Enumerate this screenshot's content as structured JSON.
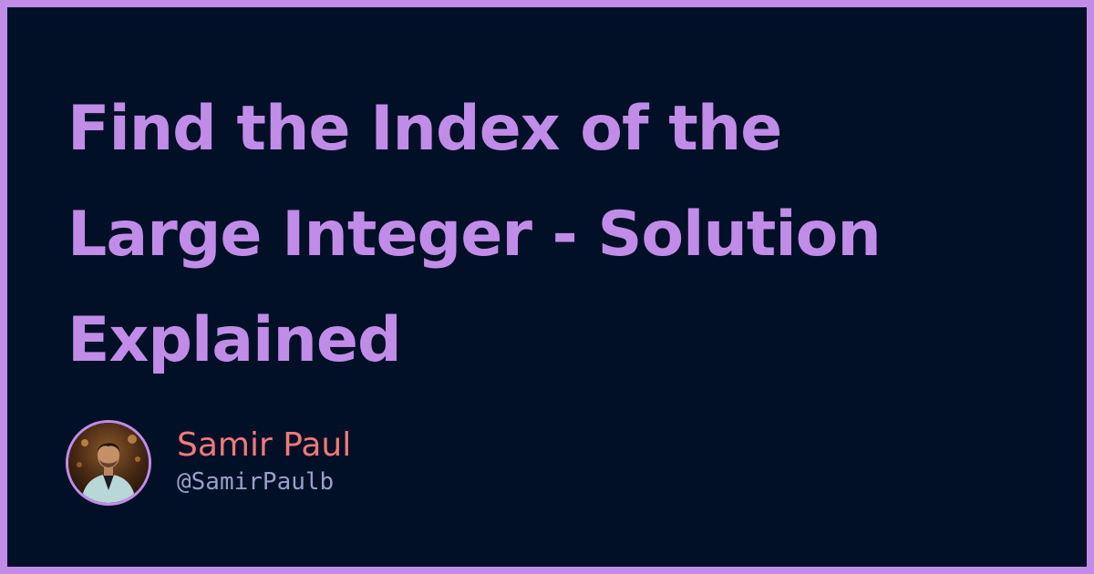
{
  "article": {
    "title_lines": [
      "Find the Index of the",
      "Large Integer - Solution",
      "Explained"
    ]
  },
  "author": {
    "name": "Samir Paul",
    "handle": "@SamirPaulb",
    "avatar_icon": "person-photo-avatar"
  },
  "colors": {
    "frame": "#c18ce8",
    "background": "#021027",
    "title": "#c18ce8",
    "name": "#f07a7a",
    "handle": "#9a9fc8"
  }
}
